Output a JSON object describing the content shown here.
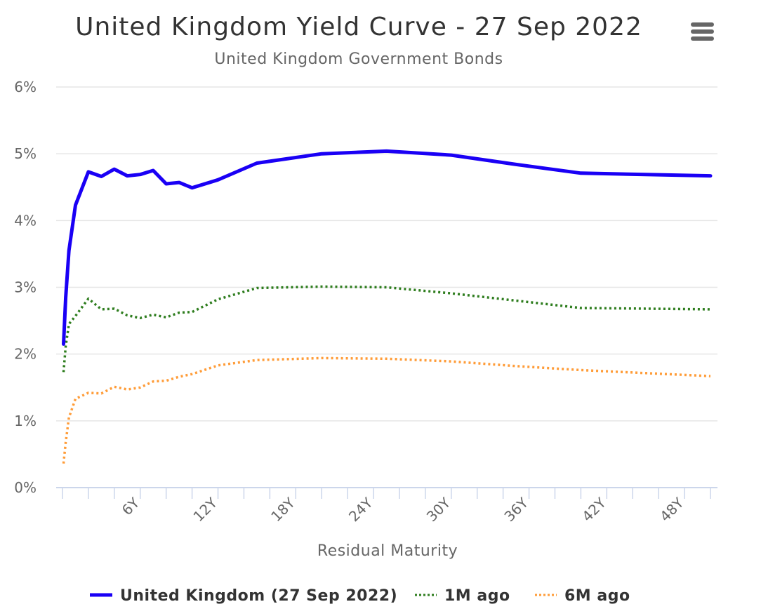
{
  "colors": {
    "main": "#1a00f5",
    "m1": "#2e7d1e",
    "m6": "#ff9c38",
    "menu": "#666666"
  },
  "icons": {
    "menu": "hamburger-menu-icon"
  },
  "chart_data": {
    "type": "line",
    "title": "United Kingdom Yield Curve - 27 Sep 2022",
    "subtitle": "United Kingdom Government Bonds",
    "xlabel": "Residual Maturity",
    "ylabel": "",
    "xlim": [
      0,
      50
    ],
    "ylim": [
      0,
      6
    ],
    "x_tick_values": [
      6,
      12,
      18,
      24,
      30,
      36,
      42,
      48
    ],
    "x_tick_labels": [
      "6Y",
      "12Y",
      "18Y",
      "24Y",
      "30Y",
      "36Y",
      "42Y",
      "48Y"
    ],
    "y_tick_values": [
      0,
      1,
      2,
      3,
      4,
      5,
      6
    ],
    "y_tick_labels": [
      "0%",
      "1%",
      "2%",
      "3%",
      "4%",
      "5%",
      "6%"
    ],
    "legend_position": "bottom-center",
    "grid": true,
    "series": [
      {
        "name": "United Kingdom (27 Sep 2022)",
        "style": "solid",
        "x": [
          0.08,
          0.25,
          0.5,
          1,
          2,
          3,
          4,
          5,
          6,
          7,
          8,
          9,
          10,
          12,
          15,
          20,
          25,
          30,
          35,
          40,
          50
        ],
        "values": [
          2.15,
          2.85,
          3.55,
          4.23,
          4.73,
          4.66,
          4.77,
          4.67,
          4.69,
          4.75,
          4.55,
          4.57,
          4.49,
          4.61,
          4.86,
          5.0,
          5.04,
          4.98,
          4.84,
          4.71,
          4.67
        ]
      },
      {
        "name": "1M ago",
        "style": "dotted",
        "x": [
          0.08,
          0.25,
          0.5,
          1,
          2,
          3,
          4,
          5,
          6,
          7,
          8,
          9,
          10,
          12,
          15,
          20,
          25,
          30,
          35,
          40,
          50
        ],
        "values": [
          1.73,
          2.12,
          2.45,
          2.57,
          2.83,
          2.67,
          2.68,
          2.58,
          2.54,
          2.59,
          2.55,
          2.62,
          2.63,
          2.82,
          2.99,
          3.01,
          3.0,
          2.91,
          2.8,
          2.69,
          2.67
        ]
      },
      {
        "name": "6M ago",
        "style": "dotted",
        "x": [
          0.08,
          0.25,
          0.5,
          1,
          2,
          3,
          4,
          5,
          6,
          7,
          8,
          9,
          10,
          12,
          15,
          20,
          25,
          30,
          35,
          40,
          50
        ],
        "values": [
          0.36,
          0.68,
          1.05,
          1.33,
          1.42,
          1.41,
          1.51,
          1.47,
          1.5,
          1.59,
          1.6,
          1.66,
          1.7,
          1.83,
          1.91,
          1.94,
          1.93,
          1.89,
          1.82,
          1.76,
          1.67
        ]
      }
    ]
  }
}
